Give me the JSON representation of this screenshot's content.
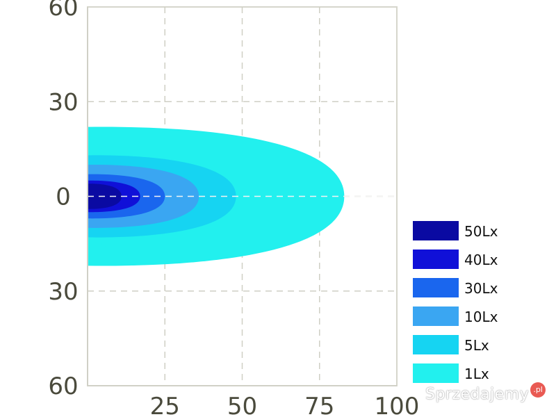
{
  "chart_data": {
    "type": "heatmap",
    "title": "",
    "xlabel": "",
    "ylabel": "",
    "xlim": [
      0,
      100
    ],
    "ylim": [
      -60,
      60
    ],
    "grid": true,
    "x_ticks": [
      {
        "value": 25,
        "label": "25"
      },
      {
        "value": 50,
        "label": "50"
      },
      {
        "value": 75,
        "label": "75"
      },
      {
        "value": 100,
        "label": "100"
      }
    ],
    "y_ticks": [
      {
        "value": 60,
        "label": "60"
      },
      {
        "value": 30,
        "label": "30"
      },
      {
        "value": 0,
        "label": "0"
      },
      {
        "value": -30,
        "label": "30"
      },
      {
        "value": -60,
        "label": "60"
      }
    ],
    "legend_position": "right",
    "series": [
      {
        "name": "1Lx",
        "color": "#22f0ee",
        "x_max": 83,
        "half_width": 22
      },
      {
        "name": "5Lx",
        "color": "#16d4f2",
        "x_max": 48,
        "half_width": 13
      },
      {
        "name": "10Lx",
        "color": "#3aa6f2",
        "x_max": 36,
        "half_width": 10
      },
      {
        "name": "30Lx",
        "color": "#1a66ee",
        "x_max": 25,
        "half_width": 7
      },
      {
        "name": "40Lx",
        "color": "#1010d8",
        "x_max": 17,
        "half_width": 5
      },
      {
        "name": "50Lx",
        "color": "#0a0aa2",
        "x_max": 11,
        "half_width": 4
      }
    ],
    "legend_order": [
      "50Lx",
      "40Lx",
      "30Lx",
      "10Lx",
      "5Lx",
      "1Lx"
    ]
  },
  "watermark": {
    "text": "Sprzedajemy",
    "badge": ".pl"
  }
}
